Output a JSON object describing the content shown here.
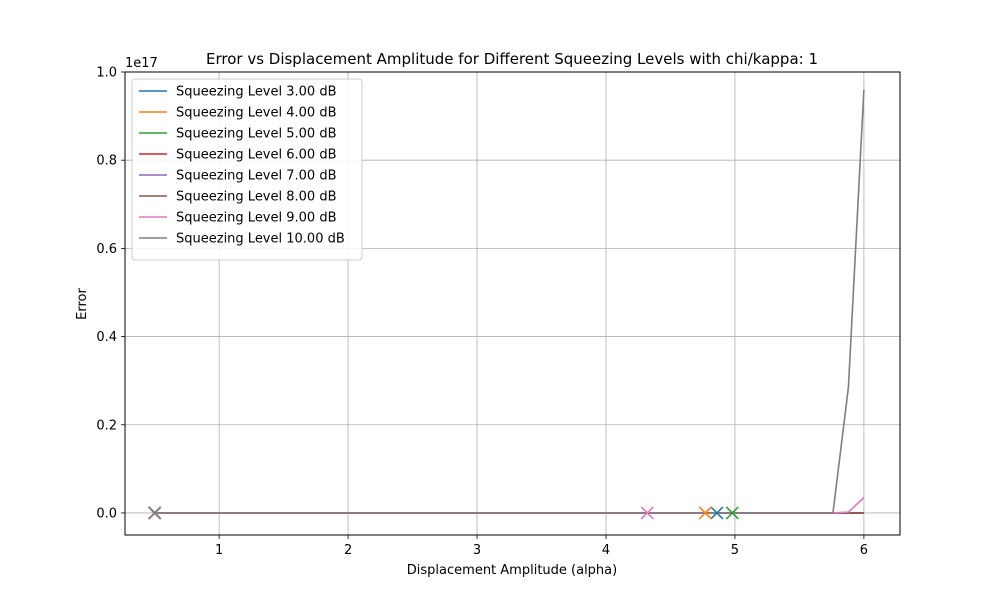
{
  "chart_data": {
    "type": "line",
    "title": "Error vs Displacement Amplitude for Different Squeezing Levels with chi/kappa: 1",
    "xlabel": "Displacement Amplitude (alpha)",
    "ylabel": "Error",
    "y_offset_label": "1e17",
    "xlim": [
      0.27,
      6.28
    ],
    "ylim": [
      -0.05,
      1.0
    ],
    "x_ticks": [
      1,
      2,
      3,
      4,
      5,
      6
    ],
    "x_tick_labels": [
      "1",
      "2",
      "3",
      "4",
      "5",
      "6"
    ],
    "y_ticks": [
      0.0,
      0.2,
      0.4,
      0.6,
      0.8,
      1.0
    ],
    "y_tick_labels": [
      "0.0",
      "0.2",
      "0.4",
      "0.6",
      "0.8",
      "1.0"
    ],
    "grid": true,
    "legend_position": "top-left",
    "series": [
      {
        "name": "Squeezing Level 3.00 dB",
        "color": "#1f77b4",
        "x": [
          0.5,
          5.76,
          5.88,
          6.0
        ],
        "y": [
          0,
          0,
          0,
          0
        ],
        "markers": [
          {
            "x": 0.5,
            "y": 0
          },
          {
            "x": 4.86,
            "y": 0
          }
        ]
      },
      {
        "name": "Squeezing Level 4.00 dB",
        "color": "#ff7f0e",
        "x": [
          0.5,
          5.76,
          5.88,
          6.0
        ],
        "y": [
          0,
          0,
          0,
          0
        ],
        "markers": [
          {
            "x": 0.5,
            "y": 0
          },
          {
            "x": 4.77,
            "y": 0
          }
        ]
      },
      {
        "name": "Squeezing Level 5.00 dB",
        "color": "#2ca02c",
        "x": [
          0.5,
          5.76,
          5.88,
          6.0
        ],
        "y": [
          0,
          0,
          0,
          0
        ],
        "markers": [
          {
            "x": 0.5,
            "y": 0
          },
          {
            "x": 4.98,
            "y": 0
          }
        ]
      },
      {
        "name": "Squeezing Level 6.00 dB",
        "color": "#d62728",
        "x": [
          0.5,
          5.76,
          5.88,
          6.0
        ],
        "y": [
          0,
          0,
          0,
          0
        ],
        "markers": [
          {
            "x": 0.5,
            "y": 0
          }
        ]
      },
      {
        "name": "Squeezing Level 7.00 dB",
        "color": "#9467bd",
        "x": [
          0.5,
          5.76,
          5.88,
          6.0
        ],
        "y": [
          0,
          0,
          0,
          0
        ],
        "markers": [
          {
            "x": 0.5,
            "y": 0
          }
        ]
      },
      {
        "name": "Squeezing Level 8.00 dB",
        "color": "#8c564b",
        "x": [
          0.5,
          5.76,
          5.88,
          6.0
        ],
        "y": [
          0,
          0,
          0,
          0
        ],
        "markers": [
          {
            "x": 0.5,
            "y": 0
          }
        ]
      },
      {
        "name": "Squeezing Level 9.00 dB",
        "color": "#e377c2",
        "x": [
          0.5,
          5.76,
          5.88,
          6.0
        ],
        "y": [
          0,
          0,
          0.002,
          0.035
        ],
        "markers": [
          {
            "x": 0.5,
            "y": 0
          },
          {
            "x": 4.32,
            "y": 0
          }
        ]
      },
      {
        "name": "Squeezing Level 10.00 dB",
        "color": "#7f7f7f",
        "x": [
          0.5,
          5.76,
          5.88,
          6.0
        ],
        "y": [
          0,
          0,
          0.285,
          0.96
        ],
        "markers": [
          {
            "x": 0.5,
            "y": 0
          }
        ]
      }
    ]
  }
}
